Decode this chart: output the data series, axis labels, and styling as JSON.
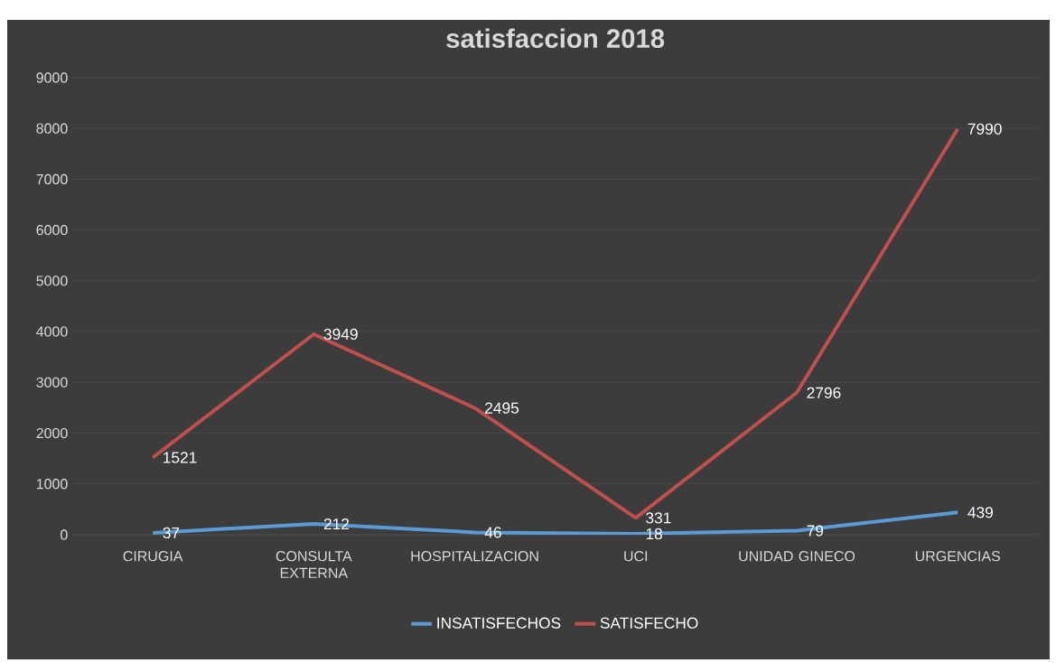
{
  "chart_data": {
    "type": "line",
    "title": "satisfaccion 2018",
    "categories": [
      "CIRUGIA",
      "CONSULTA EXTERNA",
      "HOSPITALIZACION",
      "UCI",
      "UNIDAD GINECO",
      "URGENCIAS"
    ],
    "series": [
      {
        "name": "INSATISFECHOS",
        "color": "#5b9bd5",
        "values": [
          37,
          212,
          46,
          18,
          79,
          439
        ]
      },
      {
        "name": "SATISFECHO",
        "color": "#c0504d",
        "values": [
          1521,
          3949,
          2495,
          331,
          2796,
          7990
        ]
      }
    ],
    "ylim": [
      0,
      9000
    ],
    "yticks": [
      0,
      1000,
      2000,
      3000,
      4000,
      5000,
      6000,
      7000,
      8000,
      9000
    ],
    "grid": "y",
    "legend": "bottom",
    "data_labels": true,
    "marker": "none",
    "line_style": "solid"
  }
}
